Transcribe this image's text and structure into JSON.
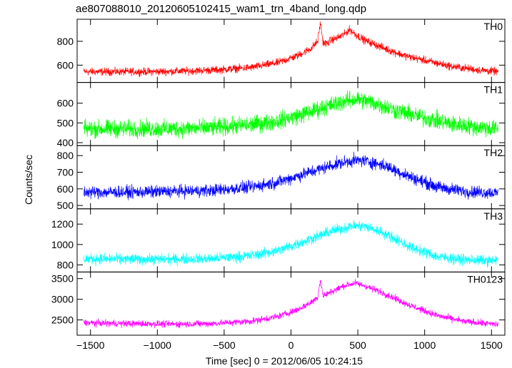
{
  "chart_data": {
    "type": "line",
    "title": "ae807088010_20120605102415_wam1_trn_4band_long.qdp",
    "xlabel": "Time [sec] 0 = 2012/06/05 10:24:15",
    "ylabel": "Counts/sec",
    "xlim": [
      -1600,
      1600
    ],
    "xticks": [
      -1500,
      -1000,
      -500,
      0,
      500,
      1000,
      1500
    ],
    "xtick_labels": [
      "−1500",
      "−1000",
      "−500",
      "0",
      "500",
      "1000",
      "1500"
    ],
    "panels": [
      {
        "label": "TH0",
        "color": "#ff0000",
        "ylim": [
          455,
          985
        ],
        "yticks": [
          600,
          800
        ],
        "series": {
          "x": [
            -1550,
            -1300,
            -1050,
            -800,
            -550,
            -300,
            -100,
            50,
            150,
            200,
            220,
            240,
            270,
            300,
            350,
            400,
            440,
            480,
            550,
            700,
            850,
            1000,
            1200,
            1400,
            1550
          ],
          "y": [
            545,
            545,
            545,
            550,
            560,
            580,
            620,
            680,
            740,
            800,
            960,
            790,
            780,
            810,
            830,
            860,
            900,
            860,
            810,
            740,
            680,
            640,
            590,
            560,
            545
          ],
          "noise": 28
        }
      },
      {
        "label": "TH1",
        "color": "#00ff00",
        "ylim": [
          385,
          705
        ],
        "yticks": [
          400,
          500,
          600
        ],
        "series": {
          "x": [
            -1550,
            -1200,
            -900,
            -600,
            -300,
            -100,
            100,
            250,
            400,
            500,
            600,
            800,
            1000,
            1200,
            1400,
            1550
          ],
          "y": [
            470,
            470,
            470,
            475,
            490,
            510,
            545,
            580,
            610,
            620,
            605,
            560,
            525,
            495,
            478,
            470
          ],
          "noise": 38
        }
      },
      {
        "label": "TH2",
        "color": "#0000ff",
        "ylim": [
          480,
          860
        ],
        "yticks": [
          500,
          600,
          700,
          800
        ],
        "series": {
          "x": [
            -1550,
            -1200,
            -900,
            -600,
            -300,
            -100,
            100,
            300,
            450,
            550,
            700,
            900,
            1100,
            1300,
            1550
          ],
          "y": [
            580,
            580,
            585,
            590,
            610,
            640,
            690,
            740,
            770,
            770,
            740,
            670,
            610,
            585,
            575
          ],
          "noise": 32
        }
      },
      {
        "label": "TH3",
        "color": "#00ffff",
        "ylim": [
          730,
          1350
        ],
        "yticks": [
          800,
          1000,
          1200
        ],
        "series": {
          "x": [
            -1550,
            -1200,
            -900,
            -600,
            -300,
            -100,
            100,
            300,
            450,
            550,
            700,
            900,
            1100,
            1300,
            1550
          ],
          "y": [
            860,
            855,
            855,
            860,
            890,
            940,
            1030,
            1130,
            1180,
            1180,
            1110,
            970,
            880,
            850,
            840
          ],
          "noise": 45
        }
      },
      {
        "label": "TH0123",
        "color": "#ff00ff",
        "ylim": [
          2130,
          3660
        ],
        "yticks": [
          2500,
          3000,
          3500
        ],
        "series": {
          "x": [
            -1550,
            -1200,
            -900,
            -600,
            -300,
            -100,
            50,
            150,
            200,
            220,
            240,
            300,
            400,
            480,
            550,
            700,
            900,
            1100,
            1300,
            1550
          ],
          "y": [
            2430,
            2410,
            2400,
            2410,
            2470,
            2580,
            2750,
            2920,
            3050,
            3480,
            3080,
            3180,
            3330,
            3390,
            3330,
            3140,
            2840,
            2600,
            2460,
            2390
          ],
          "noise": 70
        }
      }
    ],
    "grid": false,
    "legend": "none"
  }
}
